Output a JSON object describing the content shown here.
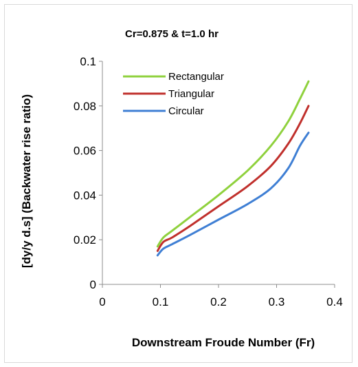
{
  "chart_data": {
    "type": "line",
    "title": "Cr=0.875 & t=1.0 hr",
    "xlabel": "Downstream Froude Number (Fr)",
    "ylabel": "[dy/y d.s] (Backwater rise ratio)",
    "xlim": [
      0,
      0.4
    ],
    "ylim": [
      0,
      0.1
    ],
    "xticks": [
      0,
      0.1,
      0.2,
      0.3,
      0.4
    ],
    "yticks": [
      0,
      0.02,
      0.04,
      0.06,
      0.08,
      0.1
    ],
    "xtick_labels": [
      "0",
      "0.1",
      "0.2",
      "0.3",
      "0.4"
    ],
    "ytick_labels": [
      "0",
      "0.02",
      "0.04",
      "0.06",
      "0.08",
      "0.1"
    ],
    "grid": false,
    "legend_position": "top-left",
    "series": [
      {
        "name": "Rectangular",
        "color": "#8fd13d",
        "x": [
          0.095,
          0.105,
          0.12,
          0.15,
          0.2,
          0.25,
          0.29,
          0.32,
          0.34,
          0.355
        ],
        "y": [
          0.017,
          0.021,
          0.024,
          0.03,
          0.04,
          0.051,
          0.062,
          0.073,
          0.083,
          0.091
        ]
      },
      {
        "name": "Triangular",
        "color": "#c0302c",
        "x": [
          0.095,
          0.105,
          0.12,
          0.15,
          0.2,
          0.25,
          0.29,
          0.32,
          0.34,
          0.355
        ],
        "y": [
          0.015,
          0.019,
          0.021,
          0.026,
          0.035,
          0.044,
          0.053,
          0.063,
          0.072,
          0.08
        ]
      },
      {
        "name": "Circular",
        "color": "#3f7fd4",
        "x": [
          0.095,
          0.105,
          0.12,
          0.15,
          0.2,
          0.25,
          0.29,
          0.32,
          0.34,
          0.355
        ],
        "y": [
          0.013,
          0.016,
          0.018,
          0.022,
          0.029,
          0.036,
          0.043,
          0.052,
          0.062,
          0.068
        ]
      }
    ]
  }
}
